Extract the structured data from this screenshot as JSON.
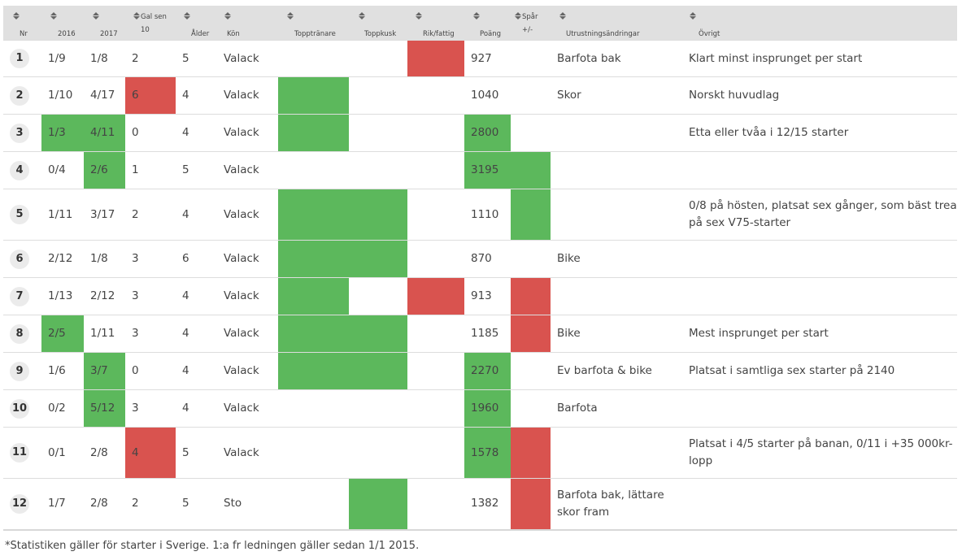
{
  "headers": [
    {
      "id": "nr",
      "lines": [
        "Nr"
      ]
    },
    {
      "id": "y2016",
      "lines": [
        "2016"
      ]
    },
    {
      "id": "y2017",
      "lines": [
        "2017"
      ]
    },
    {
      "id": "gal",
      "lines": [
        "Gal sen",
        "10"
      ]
    },
    {
      "id": "alder",
      "lines": [
        "Ålder"
      ]
    },
    {
      "id": "kon",
      "lines": [
        "Kön"
      ]
    },
    {
      "id": "topptranare",
      "lines": [
        "Topptränare"
      ]
    },
    {
      "id": "toppkusk",
      "lines": [
        "Toppkusk"
      ]
    },
    {
      "id": "rikfattig",
      "lines": [
        "Rik/fattig"
      ]
    },
    {
      "id": "poang",
      "lines": [
        "Poäng"
      ]
    },
    {
      "id": "spar",
      "lines": [
        "Spår",
        "+/-"
      ]
    },
    {
      "id": "utrustning",
      "lines": [
        "Utrustningsändringar"
      ]
    },
    {
      "id": "ovrigt",
      "lines": [
        "Övrigt"
      ]
    }
  ],
  "colors": {
    "green": "#5cb85c",
    "red": "#d9534f",
    "header_bg": "#e0e0e0"
  },
  "rows": [
    {
      "nr": "1",
      "cells": [
        "1/9",
        "1/8",
        "2",
        "5",
        "Valack",
        "",
        "",
        "",
        "927",
        "",
        "Barfota bak",
        "Klart minst insprunget per start"
      ],
      "marks": [
        "",
        "",
        "",
        "",
        "",
        "",
        "",
        "r",
        "",
        "",
        "",
        ""
      ]
    },
    {
      "nr": "2",
      "cells": [
        "1/10",
        "4/17",
        "6",
        "4",
        "Valack",
        "",
        "",
        "",
        "1040",
        "",
        "Skor",
        "Norskt huvudlag"
      ],
      "marks": [
        "",
        "",
        "r",
        "",
        "",
        "g",
        "",
        "",
        "",
        "",
        "",
        ""
      ]
    },
    {
      "nr": "3",
      "cells": [
        "1/3",
        "4/11",
        "0",
        "4",
        "Valack",
        "",
        "",
        "",
        "2800",
        "",
        "",
        "Etta eller tvåa i 12/15 starter"
      ],
      "marks": [
        "g",
        "g",
        "",
        "",
        "",
        "g",
        "",
        "",
        "g",
        "",
        "",
        ""
      ]
    },
    {
      "nr": "4",
      "cells": [
        "0/4",
        "2/6",
        "1",
        "5",
        "Valack",
        "",
        "",
        "",
        "3195",
        "",
        "",
        ""
      ],
      "marks": [
        "",
        "g",
        "",
        "",
        "",
        "",
        "",
        "",
        "g",
        "g",
        "",
        ""
      ]
    },
    {
      "nr": "5",
      "cells": [
        "1/11",
        "3/17",
        "2",
        "4",
        "Valack",
        "",
        "",
        "",
        "1110",
        "",
        "",
        "0/8 på hösten, platsat sex gånger, som bäst trea på sex V75-starter"
      ],
      "marks": [
        "",
        "",
        "",
        "",
        "",
        "g",
        "g",
        "",
        "",
        "g",
        "",
        ""
      ]
    },
    {
      "nr": "6",
      "cells": [
        "2/12",
        "1/8",
        "3",
        "6",
        "Valack",
        "",
        "",
        "",
        "870",
        "",
        "Bike",
        ""
      ],
      "marks": [
        "",
        "",
        "",
        "",
        "",
        "g",
        "g",
        "",
        "",
        "",
        "",
        ""
      ]
    },
    {
      "nr": "7",
      "cells": [
        "1/13",
        "2/12",
        "3",
        "4",
        "Valack",
        "",
        "",
        "",
        "913",
        "",
        "",
        ""
      ],
      "marks": [
        "",
        "",
        "",
        "",
        "",
        "g",
        "",
        "r",
        "",
        "r",
        "",
        ""
      ]
    },
    {
      "nr": "8",
      "cells": [
        "2/5",
        "1/11",
        "3",
        "4",
        "Valack",
        "",
        "",
        "",
        "1185",
        "",
        "Bike",
        "Mest insprunget per start"
      ],
      "marks": [
        "g",
        "",
        "",
        "",
        "",
        "g",
        "g",
        "",
        "",
        "r",
        "",
        ""
      ]
    },
    {
      "nr": "9",
      "cells": [
        "1/6",
        "3/7",
        "0",
        "4",
        "Valack",
        "",
        "",
        "",
        "2270",
        "",
        "Ev barfota & bike",
        "Platsat i samtliga sex starter på 2140"
      ],
      "marks": [
        "",
        "g",
        "",
        "",
        "",
        "g",
        "g",
        "",
        "g",
        "",
        "",
        ""
      ]
    },
    {
      "nr": "10",
      "cells": [
        "0/2",
        "5/12",
        "3",
        "4",
        "Valack",
        "",
        "",
        "",
        "1960",
        "",
        "Barfota",
        ""
      ],
      "marks": [
        "",
        "g",
        "",
        "",
        "",
        "",
        "",
        "",
        "g",
        "",
        "",
        ""
      ]
    },
    {
      "nr": "11",
      "cells": [
        "0/1",
        "2/8",
        "4",
        "5",
        "Valack",
        "",
        "",
        "",
        "1578",
        "",
        "",
        "Platsat i 4/5 starter på banan, 0/11 i +35 000kr-lopp"
      ],
      "marks": [
        "",
        "",
        "r",
        "",
        "",
        "",
        "",
        "",
        "g",
        "r",
        "",
        ""
      ]
    },
    {
      "nr": "12",
      "cells": [
        "1/7",
        "2/8",
        "2",
        "5",
        "Sto",
        "",
        "",
        "",
        "1382",
        "",
        "Barfota bak, lättare skor fram",
        ""
      ],
      "marks": [
        "",
        "",
        "",
        "",
        "",
        "",
        "g",
        "",
        "",
        "r",
        "",
        ""
      ]
    }
  ],
  "footnote": "*Statistiken gäller för starter i Sverige. 1:a fr ledningen gäller sedan 1/1 2015."
}
